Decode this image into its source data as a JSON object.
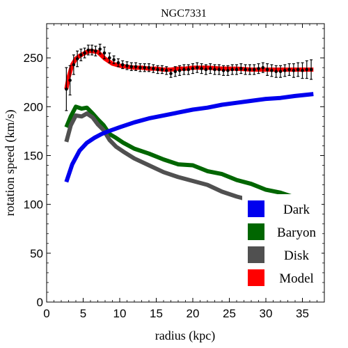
{
  "chart_data": {
    "type": "line",
    "title": "NGC7331",
    "xlabel": "radius (kpc)",
    "ylabel": "rotation speed (km/s)",
    "xlim": [
      0,
      38
    ],
    "ylim": [
      0,
      285
    ],
    "xticks": [
      0,
      5,
      10,
      15,
      20,
      25,
      30,
      35
    ],
    "yticks": [
      0,
      50,
      100,
      150,
      200,
      250
    ],
    "grid": false,
    "legend_position": "bottom-right",
    "series": [
      {
        "name": "Dark",
        "color": "#0000ee",
        "x": [
          2.7,
          3.5,
          4.5,
          5.5,
          6.5,
          7.5,
          8.5,
          10,
          12,
          14,
          16,
          18,
          20,
          22,
          24,
          26,
          28,
          30,
          32,
          34,
          36.5
        ],
        "y": [
          123,
          141,
          155,
          163,
          168,
          172,
          175,
          179,
          184,
          188,
          191,
          194,
          197,
          199,
          202,
          204,
          206,
          208,
          209,
          211,
          213
        ]
      },
      {
        "name": "Baryon",
        "color": "#006600",
        "x": [
          2.7,
          3.3,
          4.0,
          4.8,
          5.5,
          6.3,
          7.0,
          7.8,
          8.6,
          9.5,
          10.5,
          12,
          14,
          16,
          18,
          20,
          22,
          24,
          26,
          28,
          30,
          32,
          34,
          36.5
        ],
        "y": [
          179,
          190,
          200,
          198,
          199,
          193,
          187,
          181,
          172,
          168,
          163,
          157,
          152,
          146,
          141,
          140,
          134,
          131,
          125,
          121,
          115,
          112,
          107,
          102
        ]
      },
      {
        "name": "Disk",
        "color": "#505050",
        "x": [
          2.7,
          3.3,
          4.0,
          4.8,
          5.5,
          6.3,
          7.0,
          7.8,
          8.6,
          9.5,
          10.5,
          12,
          14,
          16,
          18,
          20,
          22,
          24,
          26,
          28,
          30,
          32,
          34,
          36.5
        ],
        "y": [
          164,
          181,
          191,
          190,
          193,
          189,
          182,
          176,
          166,
          159,
          154,
          147,
          140,
          133,
          128,
          124,
          120,
          113,
          108,
          104,
          100,
          96,
          93,
          90
        ]
      },
      {
        "name": "Model",
        "color": "#ff0000",
        "x": [
          2.7,
          3.0,
          3.5,
          4.0,
          4.5,
          5.0,
          5.5,
          6.0,
          7.0,
          8.0,
          9.0,
          10,
          11,
          12,
          13,
          14,
          15,
          16,
          17,
          18,
          19,
          20,
          22,
          24,
          26,
          28,
          30,
          32,
          34,
          36.5
        ],
        "y": [
          218,
          230,
          243,
          249,
          252,
          254,
          256,
          257,
          256,
          249,
          244,
          242,
          241,
          240,
          240,
          239,
          239,
          238,
          238,
          239,
          239,
          240,
          240,
          239,
          239,
          238,
          238,
          238,
          238,
          238
        ]
      }
    ],
    "observed": {
      "x": [
        2.7,
        3.2,
        3.7,
        4.2,
        4.7,
        5.2,
        5.7,
        6.2,
        6.7,
        7.3,
        7.9,
        8.6,
        9.2,
        9.8,
        10.4,
        11.0,
        11.6,
        12.2,
        12.8,
        13.4,
        14.0,
        14.6,
        15.2,
        15.8,
        16.4,
        17.0,
        17.6,
        18.2,
        18.8,
        19.4,
        20.0,
        20.6,
        21.2,
        21.8,
        22.4,
        23.0,
        23.6,
        24.2,
        24.8,
        25.4,
        26.0,
        26.6,
        27.2,
        27.8,
        28.4,
        29.0,
        29.6,
        30.2,
        30.8,
        31.4,
        32.0,
        32.6,
        33.2,
        33.8,
        34.4,
        35.0,
        35.6,
        36.2
      ],
      "y": [
        218,
        227,
        243,
        249,
        253,
        255,
        258,
        258,
        257,
        259,
        255,
        250,
        248,
        245,
        243,
        242,
        241,
        241,
        240,
        240,
        240,
        239,
        238,
        238,
        237,
        234,
        236,
        237,
        238,
        238,
        239,
        240,
        239,
        238,
        239,
        238,
        238,
        237,
        237,
        238,
        238,
        239,
        238,
        238,
        238,
        239,
        240,
        238,
        237,
        236,
        236,
        237,
        238,
        237,
        238,
        237,
        238,
        238
      ],
      "err": [
        22,
        15,
        10,
        8,
        6,
        5,
        5,
        5,
        5,
        5,
        6,
        5,
        4,
        4,
        4,
        4,
        4,
        4,
        4,
        4,
        4,
        4,
        4,
        4,
        4,
        4,
        5,
        5,
        5,
        5,
        5,
        5,
        5,
        5,
        5,
        5,
        5,
        5,
        5,
        5,
        5,
        5,
        5,
        5,
        5,
        5,
        5,
        6,
        6,
        6,
        6,
        6,
        6,
        7,
        7,
        8,
        9,
        10
      ]
    }
  }
}
